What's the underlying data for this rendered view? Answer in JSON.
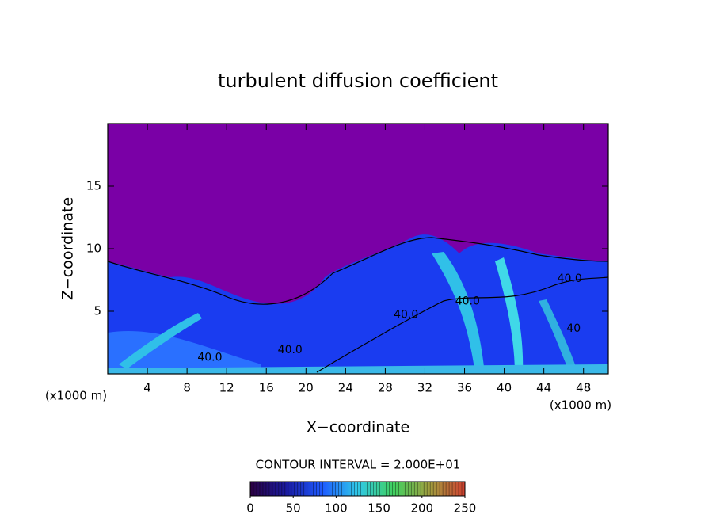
{
  "chart_data": {
    "type": "contour",
    "title": "turbulent diffusion coefficient",
    "xlabel": "X−coordinate",
    "ylabel": "Z−coordinate",
    "x_unit_labels": [
      "(x1000 m)",
      "(x1000 m)"
    ],
    "xlim": [
      0,
      50.5
    ],
    "xticks": [
      4,
      8,
      12,
      16,
      20,
      24,
      28,
      32,
      36,
      40,
      44,
      48
    ],
    "ylim": [
      0,
      20
    ],
    "yticks": [
      5,
      10,
      15
    ],
    "annotations": [
      {
        "text": "40.0",
        "x": 46.6,
        "y": 7.6
      },
      {
        "text": "40.0",
        "x": 36.3,
        "y": 5.8
      },
      {
        "text": "40.0",
        "x": 30.1,
        "y": 4.7
      },
      {
        "text": "40.0",
        "x": 18.4,
        "y": 1.9
      },
      {
        "text": "40.0",
        "x": 10.3,
        "y": 1.3
      },
      {
        "text": "40",
        "x": 47.0,
        "y": 3.6
      }
    ],
    "contour_interval_label": "CONTOUR INTERVAL = 2.000E+01",
    "colorbar": {
      "lim": [
        0,
        250
      ],
      "ticks": [
        0,
        50,
        100,
        150,
        200,
        250
      ],
      "colors": [
        "#2a0040",
        "#1a1aa0",
        "#1e5aff",
        "#30c8e8",
        "#40d060",
        "#a0a040",
        "#d04030"
      ]
    }
  }
}
